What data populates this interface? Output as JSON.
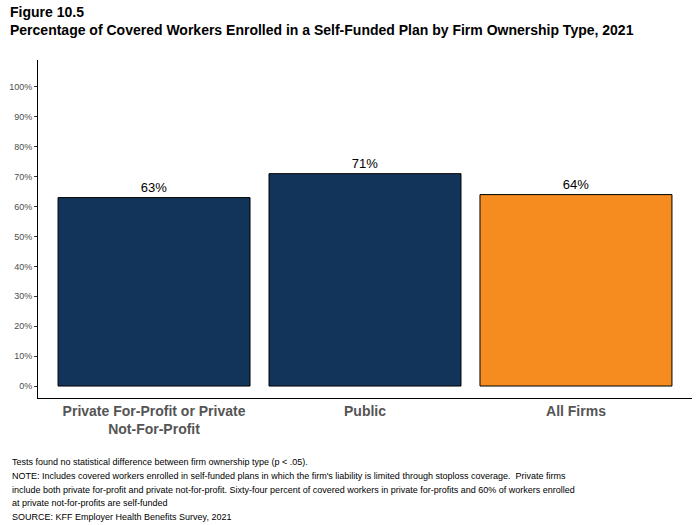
{
  "chart_data": {
    "type": "bar",
    "title": "Figure 10.5",
    "subtitle": "Percentage of Covered Workers Enrolled in a Self-Funded Plan by Firm Ownership Type, 2021",
    "categories": [
      "Private For-Profit or Private\nNot-For-Profit",
      "Public",
      "All Firms"
    ],
    "values": [
      63,
      71,
      64
    ],
    "value_labels": [
      "63%",
      "71%",
      "64%"
    ],
    "colors": [
      "#13345a",
      "#13345a",
      "#f68b1f"
    ],
    "ylim": [
      -4,
      109
    ],
    "yticks": [
      {
        "value": 0,
        "label": "0%"
      },
      {
        "value": 10,
        "label": "10%"
      },
      {
        "value": 20,
        "label": "20%"
      },
      {
        "value": 30,
        "label": "30%"
      },
      {
        "value": 40,
        "label": "40%"
      },
      {
        "value": 50,
        "label": "50%"
      },
      {
        "value": 60,
        "label": "60%"
      },
      {
        "value": 70,
        "label": "70%"
      },
      {
        "value": 80,
        "label": "80%"
      },
      {
        "value": 90,
        "label": "90%"
      },
      {
        "value": 100,
        "label": "100%"
      }
    ],
    "grid": false,
    "data_labels": true,
    "annotations": [
      "Tests found no statistical difference between firm ownership type (p < .05).",
      "NOTE: Includes covered workers enrolled in self-funded plans in which the firm's liability is limited through stoploss coverage.  Private firms",
      "include both private for-profit and private not-for-profit. Sixty-four percent of covered workers in private for-profits and 60% of workers enrolled",
      "at private not-for-profits are self-funded",
      "SOURCE: KFF Employer Health Benefits Survey, 2021"
    ]
  }
}
